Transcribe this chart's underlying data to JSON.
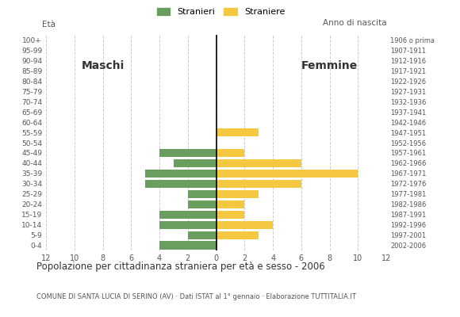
{
  "age_groups": [
    "0-4",
    "5-9",
    "10-14",
    "15-19",
    "20-24",
    "25-29",
    "30-34",
    "35-39",
    "40-44",
    "45-49",
    "50-54",
    "55-59",
    "60-64",
    "65-69",
    "70-74",
    "75-79",
    "80-84",
    "85-89",
    "90-94",
    "95-99",
    "100+"
  ],
  "birth_years": [
    "2002-2006",
    "1997-2001",
    "1992-1996",
    "1987-1991",
    "1982-1986",
    "1977-1981",
    "1972-1976",
    "1967-1971",
    "1962-1966",
    "1957-1961",
    "1952-1956",
    "1947-1951",
    "1942-1946",
    "1937-1941",
    "1932-1936",
    "1927-1931",
    "1922-1926",
    "1917-1921",
    "1912-1916",
    "1907-1911",
    "1906 o prima"
  ],
  "males": [
    4,
    2,
    4,
    4,
    2,
    2,
    5,
    5,
    3,
    4,
    0,
    0,
    0,
    0,
    0,
    0,
    0,
    0,
    0,
    0,
    0
  ],
  "females": [
    0,
    3,
    4,
    2,
    2,
    3,
    6,
    10,
    6,
    2,
    0,
    3,
    0,
    0,
    0,
    0,
    0,
    0,
    0,
    0,
    0
  ],
  "male_color": "#6a9e5e",
  "female_color": "#f5c842",
  "title": "Popolazione per cittadinanza straniera per età e sesso - 2006",
  "subtitle": "COMUNE DI SANTA LUCIA DI SERINO (AV) · Dati ISTAT al 1° gennaio · Elaborazione TUTTITALIA.IT",
  "legend_male": "Stranieri",
  "legend_female": "Straniere",
  "label_left": "Maschi",
  "label_right": "Femmine",
  "ylabel_left": "Età",
  "ylabel_right": "Anno di nascita",
  "xlim": 12,
  "background_color": "#ffffff",
  "grid_color": "#cccccc"
}
